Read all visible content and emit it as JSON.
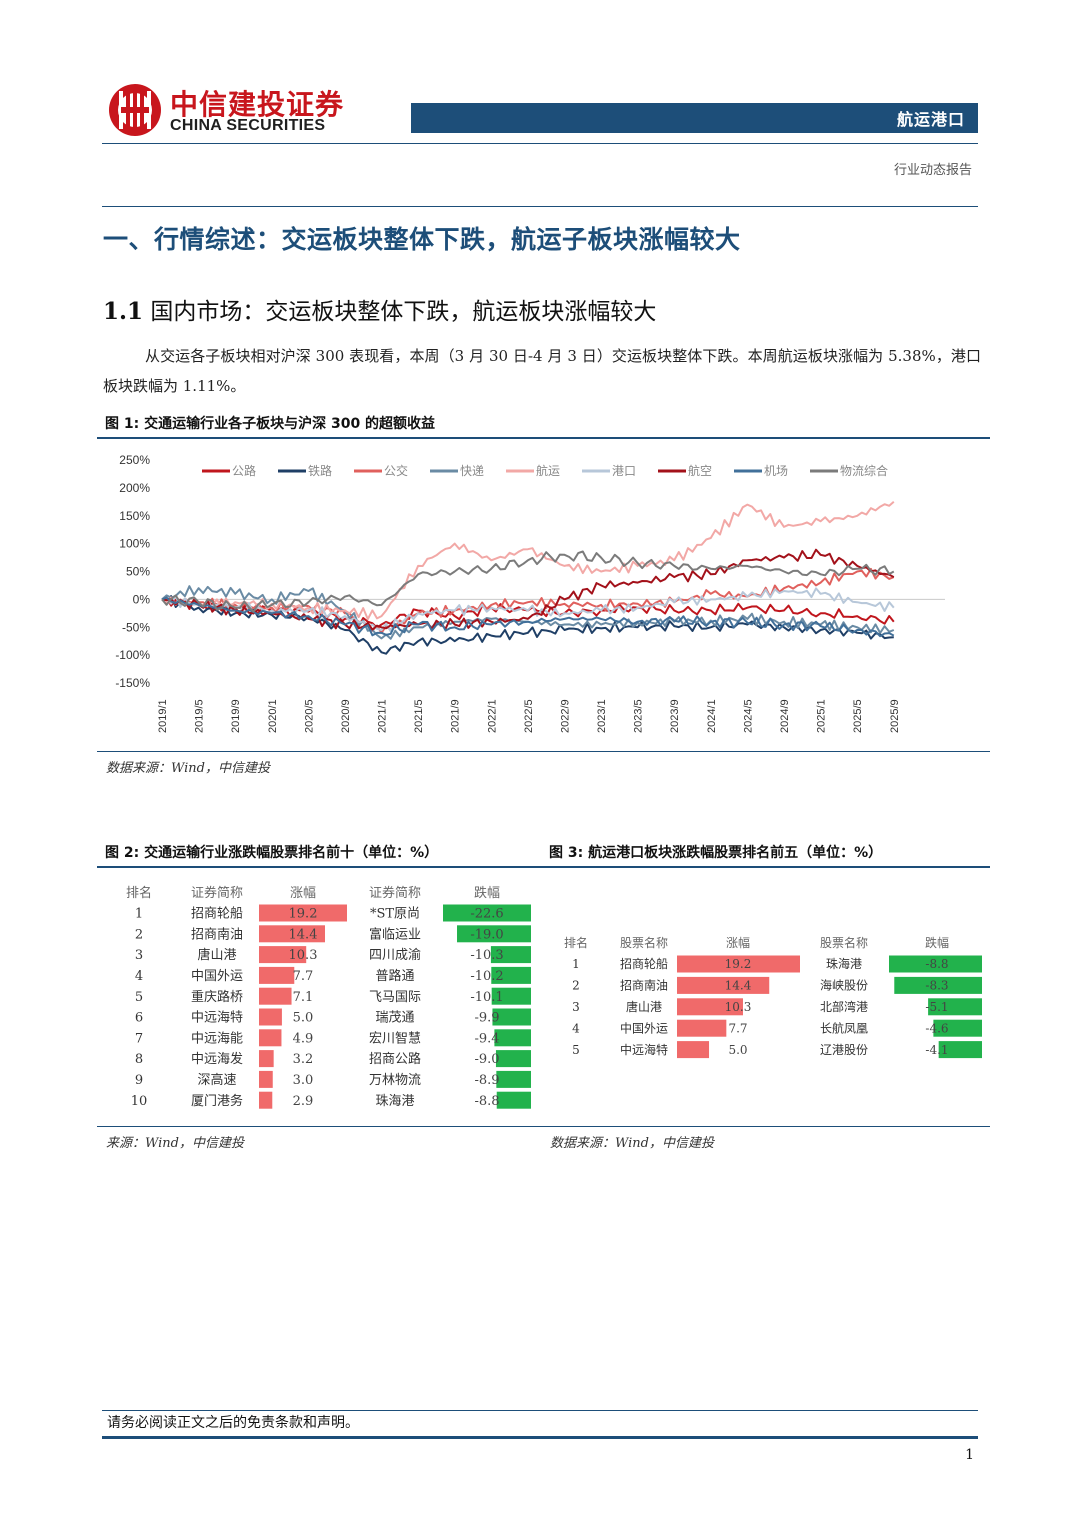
{
  "header": {
    "logo_cn": "中信建投证券",
    "logo_en": "CHINA SECURITIES",
    "section_tag": "航运港口",
    "report_type": "行业动态报告",
    "brand_color": "#c8161d",
    "navy": "#1d4e79"
  },
  "heading1": "一、行情综述：交运板块整体下跌，航运子板块涨幅较大",
  "heading2_num": "1.1",
  "heading2_text": "国内市场：交运板块整体下跌，航运板块涨幅较大",
  "paragraph": "从交运各子板块相对沪深 300 表现看，本周（3 月 30 日-4 月 3 日）交运板块整体下跌。本周航运板块涨幅为 5.38%，港口板块跌幅为 1.11%。",
  "fig1": {
    "title": "图 1: 交通运输行业各子板块与沪深 300 的超额收益",
    "source": "数据来源：Wind，中信建投",
    "chart_data": {
      "type": "line",
      "title": "交通运输行业各子板块与沪深 300 的超额收益",
      "yticks": [
        "250%",
        "200%",
        "150%",
        "100%",
        "50%",
        "0%",
        "-50%",
        "-100%",
        "-150%"
      ],
      "ylim": [
        -150,
        250
      ],
      "x": [
        "2019/1",
        "2019/5",
        "2019/9",
        "2020/1",
        "2020/5",
        "2020/9",
        "2021/1",
        "2021/5",
        "2021/9",
        "2022/1",
        "2022/5",
        "2022/9",
        "2023/1",
        "2023/5",
        "2023/9",
        "2024/1",
        "2024/5",
        "2024/9",
        "2025/1",
        "2025/5",
        "2025/9"
      ],
      "series": [
        {
          "name": "公路",
          "color": "#c0161d",
          "values": [
            0,
            -10,
            -15,
            -20,
            -22,
            -35,
            -45,
            -20,
            -30,
            -15,
            -20,
            -25,
            -20,
            -15,
            -20,
            -20,
            -15,
            -20,
            -25,
            -30,
            -40
          ]
        },
        {
          "name": "铁路",
          "color": "#1f3f66",
          "values": [
            0,
            -15,
            -25,
            -28,
            -32,
            -55,
            -95,
            -75,
            -75,
            -65,
            -60,
            -55,
            -52,
            -50,
            -48,
            -50,
            -45,
            -50,
            -55,
            -60,
            -68
          ]
        },
        {
          "name": "公交",
          "color": "#e0605d",
          "values": [
            0,
            -5,
            -10,
            -15,
            -12,
            -25,
            -60,
            -25,
            -20,
            -10,
            -5,
            -8,
            -10,
            -8,
            -5,
            10,
            5,
            20,
            30,
            50,
            40
          ]
        },
        {
          "name": "快递",
          "color": "#6a8ba4",
          "values": [
            0,
            20,
            10,
            0,
            15,
            -20,
            -70,
            -50,
            -40,
            -35,
            -40,
            -45,
            -45,
            -42,
            -40,
            -38,
            -35,
            -40,
            -45,
            -50,
            -55
          ]
        },
        {
          "name": "航运",
          "color": "#f2a8a6",
          "values": [
            0,
            -10,
            -5,
            -8,
            -15,
            -20,
            -30,
            60,
            100,
            70,
            90,
            60,
            50,
            60,
            70,
            110,
            170,
            130,
            140,
            150,
            175
          ]
        },
        {
          "name": "港口",
          "color": "#b7c7d9",
          "values": [
            0,
            -8,
            -15,
            -20,
            -20,
            -30,
            -55,
            -25,
            -20,
            -15,
            -20,
            -25,
            -20,
            -15,
            -5,
            0,
            5,
            15,
            10,
            -5,
            -15
          ]
        },
        {
          "name": "航空",
          "color": "#a3111a",
          "values": [
            0,
            -10,
            -20,
            -25,
            -35,
            -45,
            -50,
            -45,
            -45,
            -40,
            -35,
            0,
            25,
            30,
            40,
            45,
            70,
            75,
            80,
            60,
            40
          ]
        },
        {
          "name": "机场",
          "color": "#41709a",
          "values": [
            0,
            -10,
            -20,
            -25,
            -30,
            -45,
            -60,
            -45,
            -50,
            -45,
            -40,
            -35,
            -35,
            -40,
            -38,
            -40,
            -42,
            -45,
            -48,
            -55,
            -65
          ]
        },
        {
          "name": "物流综合",
          "color": "#7b7b7b",
          "values": [
            0,
            -5,
            -15,
            -10,
            -5,
            5,
            -10,
            45,
            50,
            55,
            70,
            80,
            75,
            65,
            60,
            55,
            60,
            50,
            45,
            55,
            50
          ]
        }
      ]
    }
  },
  "fig2": {
    "title": "图 2: 交通运输行业涨跌幅股票排名前十（单位：%）",
    "source": "来源：Wind，中信建投",
    "headers": [
      "排名",
      "证券简称",
      "涨幅",
      "证券简称",
      "跌幅"
    ],
    "rows": [
      {
        "rank": "1",
        "up_name": "招商轮船",
        "up": 19.2,
        "up_label": "19.2",
        "down_name": "*ST原尚",
        "down": -22.6,
        "down_label": "-22.6"
      },
      {
        "rank": "2",
        "up_name": "招商南油",
        "up": 14.4,
        "up_label": "14.4",
        "down_name": "富临运业",
        "down": -19.0,
        "down_label": "-19.0"
      },
      {
        "rank": "3",
        "up_name": "唐山港",
        "up": 10.3,
        "up_label": "10.3",
        "down_name": "四川成渝",
        "down": -10.3,
        "down_label": "-10.3"
      },
      {
        "rank": "4",
        "up_name": "中国外运",
        "up": 7.7,
        "up_label": "7.7",
        "down_name": "普路通",
        "down": -10.2,
        "down_label": "-10.2"
      },
      {
        "rank": "5",
        "up_name": "重庆路桥",
        "up": 7.1,
        "up_label": "7.1",
        "down_name": "飞马国际",
        "down": -10.1,
        "down_label": "-10.1"
      },
      {
        "rank": "6",
        "up_name": "中远海特",
        "up": 5.0,
        "up_label": "5.0",
        "down_name": "瑞茂通",
        "down": -9.9,
        "down_label": "-9.9"
      },
      {
        "rank": "7",
        "up_name": "中远海能",
        "up": 4.9,
        "up_label": "4.9",
        "down_name": "宏川智慧",
        "down": -9.4,
        "down_label": "-9.4"
      },
      {
        "rank": "8",
        "up_name": "中远海发",
        "up": 3.2,
        "up_label": "3.2",
        "down_name": "招商公路",
        "down": -9.0,
        "down_label": "-9.0"
      },
      {
        "rank": "9",
        "up_name": "深高速",
        "up": 3.0,
        "up_label": "3.0",
        "down_name": "万林物流",
        "down": -8.9,
        "down_label": "-8.9"
      },
      {
        "rank": "10",
        "up_name": "厦门港务",
        "up": 2.9,
        "up_label": "2.9",
        "down_name": "珠海港",
        "down": -8.8,
        "down_label": "-8.8"
      }
    ]
  },
  "fig3": {
    "title": "图 3: 航运港口板块涨跌幅股票排名前五（单位：%）",
    "source": "数据来源：Wind，中信建投",
    "headers": [
      "排名",
      "股票名称",
      "涨幅",
      "股票名称",
      "跌幅"
    ],
    "rows": [
      {
        "rank": "1",
        "up_name": "招商轮船",
        "up": 19.2,
        "up_label": "19.2",
        "down_name": "珠海港",
        "down": -8.8,
        "down_label": "-8.8"
      },
      {
        "rank": "2",
        "up_name": "招商南油",
        "up": 14.4,
        "up_label": "14.4",
        "down_name": "海峡股份",
        "down": -8.3,
        "down_label": "-8.3"
      },
      {
        "rank": "3",
        "up_name": "唐山港",
        "up": 10.3,
        "up_label": "10.3",
        "down_name": "北部湾港",
        "down": -5.1,
        "down_label": "-5.1"
      },
      {
        "rank": "4",
        "up_name": "中国外运",
        "up": 7.7,
        "up_label": "7.7",
        "down_name": "长航凤凰",
        "down": -4.6,
        "down_label": "-4.6"
      },
      {
        "rank": "5",
        "up_name": "中远海特",
        "up": 5.0,
        "up_label": "5.0",
        "down_name": "辽港股份",
        "down": -4.1,
        "down_label": "-4.1"
      }
    ]
  },
  "footer": {
    "disclaimer": "请务必阅读正文之后的免责条款和声明。",
    "page": "1"
  }
}
